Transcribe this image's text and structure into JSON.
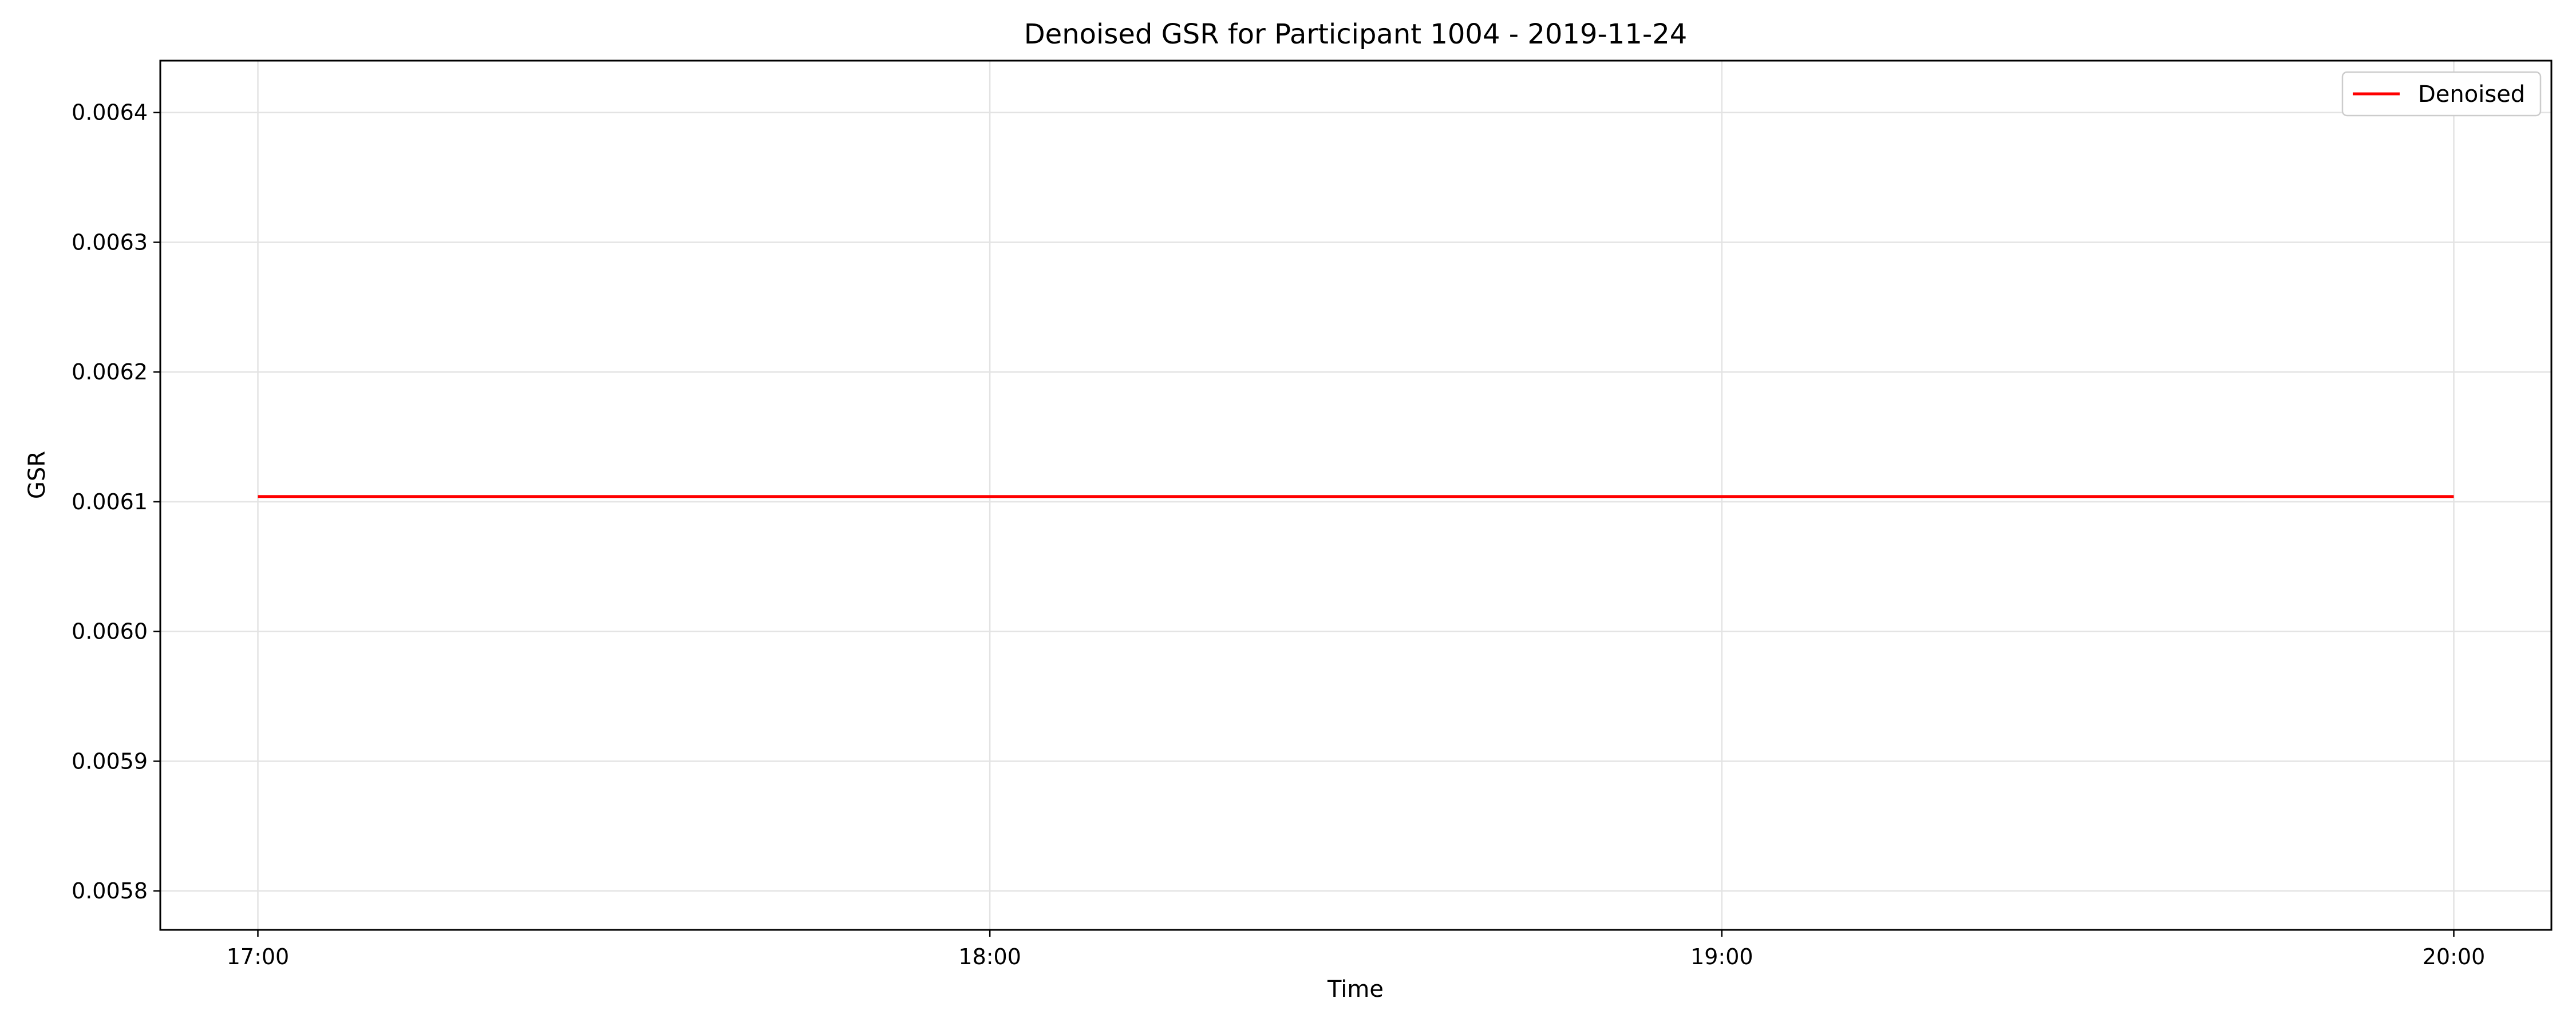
{
  "chart_data": {
    "type": "line",
    "title": "Denoised GSR for Participant 1004 - 2019-11-24",
    "xlabel": "Time",
    "ylabel": "GSR",
    "x_type": "time",
    "x": [
      "17:00",
      "18:00",
      "19:00",
      "20:00"
    ],
    "series": [
      {
        "name": "Denoised",
        "color": "#ff0000",
        "values": [
          0.006104,
          0.006104,
          0.006104,
          0.006104
        ]
      }
    ],
    "xlim": [
      "16:52",
      "20:08"
    ],
    "ylim": [
      0.00577,
      0.00644
    ],
    "xticks": [
      "17:00",
      "18:00",
      "19:00",
      "20:00"
    ],
    "yticks": [
      0.0058,
      0.0059,
      0.006,
      0.0061,
      0.0062,
      0.0063,
      0.0064
    ],
    "ytick_labels": [
      "0.0058",
      "0.0059",
      "0.0060",
      "0.0061",
      "0.0062",
      "0.0063",
      "0.0064"
    ],
    "grid": true,
    "legend_position": "top-right"
  }
}
